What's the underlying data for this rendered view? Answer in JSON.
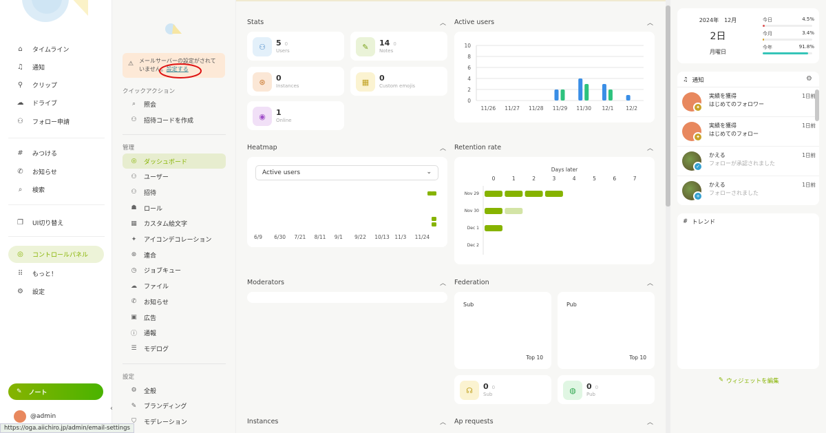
{
  "nav": {
    "items": [
      {
        "icon": "home-icon",
        "glyph": "⌂",
        "label": "タイムライン"
      },
      {
        "icon": "bell-icon",
        "glyph": "♫",
        "label": "通知"
      },
      {
        "icon": "paperclip-icon",
        "glyph": "⚲",
        "label": "クリップ"
      },
      {
        "icon": "cloud-icon",
        "glyph": "☁",
        "label": "ドライブ"
      },
      {
        "icon": "user-plus-icon",
        "glyph": "⚇",
        "label": "フォロー申請"
      },
      {
        "icon": "hash-icon",
        "glyph": "#",
        "label": "みつける"
      },
      {
        "icon": "megaphone-icon",
        "glyph": "✆",
        "label": "お知らせ"
      },
      {
        "icon": "search-icon",
        "glyph": "⌕",
        "label": "検索"
      },
      {
        "icon": "device-switch-icon",
        "glyph": "❐",
        "label": "UI切り替え"
      },
      {
        "icon": "gauge-icon",
        "glyph": "◎",
        "label": "コントロールパネル"
      },
      {
        "icon": "grid-icon",
        "glyph": "⠿",
        "label": "もっと！"
      },
      {
        "icon": "gear-icon",
        "glyph": "⚙",
        "label": "設定"
      }
    ],
    "note_button": "ノート",
    "account": "@admin",
    "accent": "#86b300"
  },
  "admin": {
    "warning_text": "メールサーバーの設定がされていません。",
    "warning_link": "設定する",
    "quick_actions_heading": "クイックアクション",
    "quick_actions": [
      {
        "icon": "search-icon",
        "glyph": "⌕",
        "label": "照会"
      },
      {
        "icon": "user-plus-icon",
        "glyph": "⚇",
        "label": "招待コードを作成"
      }
    ],
    "manage_heading": "管理",
    "manage_items": [
      {
        "icon": "gauge-icon",
        "glyph": "◎",
        "label": "ダッシュボード"
      },
      {
        "icon": "users-icon",
        "glyph": "⚇",
        "label": "ユーザー"
      },
      {
        "icon": "user-plus-icon",
        "glyph": "⚇",
        "label": "招待"
      },
      {
        "icon": "badges-icon",
        "glyph": "☗",
        "label": "ロール"
      },
      {
        "icon": "icons-icon",
        "glyph": "▦",
        "label": "カスタム絵文字"
      },
      {
        "icon": "sparkles-icon",
        "glyph": "✦",
        "label": "アイコンデコレーション"
      },
      {
        "icon": "planet-icon",
        "glyph": "⊛",
        "label": "連合"
      },
      {
        "icon": "clock-play-icon",
        "glyph": "◷",
        "label": "ジョブキュー"
      },
      {
        "icon": "cloud-icon",
        "glyph": "☁",
        "label": "ファイル"
      },
      {
        "icon": "megaphone-icon",
        "glyph": "✆",
        "label": "お知らせ"
      },
      {
        "icon": "ad-icon",
        "glyph": "▣",
        "label": "広告"
      },
      {
        "icon": "exclamation-circle-icon",
        "glyph": "ⓘ",
        "label": "通報"
      },
      {
        "icon": "list-search-icon",
        "glyph": "☰",
        "label": "モデログ"
      }
    ],
    "settings_heading": "設定",
    "settings_items": [
      {
        "icon": "gear-icon",
        "glyph": "⚙",
        "label": "全般"
      },
      {
        "icon": "paint-icon",
        "glyph": "✎",
        "label": "ブランディング"
      },
      {
        "icon": "shield-icon",
        "glyph": "⛉",
        "label": "モデレーション"
      }
    ]
  },
  "main": {
    "stats_title": "Stats",
    "stats": [
      {
        "icon": "users-icon",
        "glyph": "⚇",
        "value": "5",
        "diff": "0",
        "label": "Users",
        "bg": "#e3f0fa",
        "fg": "#4a8ac9"
      },
      {
        "icon": "pencil-icon",
        "glyph": "✎",
        "value": "14",
        "diff": "0",
        "label": "Notes",
        "bg": "#eaf3d8",
        "fg": "#7aa31c"
      },
      {
        "icon": "planet-icon",
        "glyph": "⊛",
        "value": "0",
        "diff": "",
        "label": "Instances",
        "bg": "#fbe7d6",
        "fg": "#c9782f"
      },
      {
        "icon": "icons-icon",
        "glyph": "▦",
        "value": "0",
        "diff": "",
        "label": "Custom emojis",
        "bg": "#fbf3d1",
        "fg": "#c2a325"
      },
      {
        "icon": "broadcast-icon",
        "glyph": "◉",
        "value": "1",
        "diff": "",
        "label": "Online",
        "bg": "#f1e0f7",
        "fg": "#a050c8"
      }
    ],
    "active_users_title": "Active users",
    "heatmap_title": "Heatmap",
    "heatmap_select": "Active users",
    "heatmap_ticks": [
      "6/9",
      "6/30",
      "7/21",
      "8/11",
      "9/1",
      "9/22",
      "10/13",
      "11/3",
      "11/24"
    ],
    "retention_title": "Retention rate",
    "retention_xlabel": "Days later",
    "moderators_title": "Moderators",
    "federation_title": "Federation",
    "federation_sub_label": "Sub",
    "federation_pub_label": "Pub",
    "federation_top": "Top 10",
    "federation_counts": [
      {
        "icon": "world-download-icon",
        "value": "0",
        "diff": "0",
        "label": "Sub",
        "bg": "#fbf3d1",
        "fg": "#c2a325"
      },
      {
        "icon": "world-upload-icon",
        "value": "0",
        "diff": "0",
        "label": "Pub",
        "bg": "#e0f6e3",
        "fg": "#34a853"
      }
    ],
    "instances_title": "Instances",
    "ap_requests_title": "Ap requests"
  },
  "right": {
    "calendar": {
      "month": "2024年　12月",
      "day": "2日",
      "weekday": "月曜日",
      "progress": [
        {
          "label": "今日",
          "value": "4.5%",
          "fraction": 0.045,
          "color": "#e05555"
        },
        {
          "label": "今月",
          "value": "3.4%",
          "fraction": 0.034,
          "color": "#d8a020"
        },
        {
          "label": "今年",
          "value": "91.8%",
          "fraction": 0.918,
          "color": "#35c4b8"
        }
      ]
    },
    "notifications_title": "通知",
    "notifications": [
      {
        "line1": "実績を獲得",
        "line2": "はじめてのフォロワー",
        "time": "1日前",
        "kind": "achievement"
      },
      {
        "line1": "実績を獲得",
        "line2": "はじめてのフォロー",
        "time": "1日前",
        "kind": "achievement"
      },
      {
        "line1": "かえる",
        "line2": "フォローが承認されました",
        "time": "1日前",
        "kind": "follow-accepted"
      },
      {
        "line1": "かえる",
        "line2": "フォローされました",
        "time": "1日前",
        "kind": "follow"
      }
    ],
    "trends_title": "トレンド",
    "edit_widgets": "ウィジェットを編集"
  },
  "status_url": "https://oga.aiichiro.jp/admin/email-settings",
  "chart_data": [
    {
      "type": "bar",
      "title": "Active users",
      "categories": [
        "11/26",
        "11/27",
        "11/28",
        "11/29",
        "11/30",
        "12/1",
        "12/2"
      ],
      "ylim": [
        0,
        10
      ],
      "yticks": [
        "0",
        "2",
        "4",
        "6",
        "8",
        "10"
      ],
      "series": [
        {
          "color": "#3a8ee6",
          "values": [
            0,
            0,
            0,
            2,
            4,
            3,
            1
          ]
        },
        {
          "color": "#2ec27e",
          "values": [
            0,
            0,
            0,
            2,
            3,
            2,
            0
          ]
        }
      ]
    },
    {
      "type": "heatmap",
      "title": "Retention rate",
      "xlabel": "Days later",
      "x": [
        "0",
        "1",
        "2",
        "3",
        "4",
        "5",
        "6",
        "7"
      ],
      "rows": [
        "Nov 29",
        "Nov 30",
        "Dec 1",
        "Dec 2"
      ],
      "values": [
        [
          1,
          1,
          1,
          1
        ],
        [
          1,
          0.4
        ],
        [
          1
        ],
        []
      ]
    }
  ]
}
